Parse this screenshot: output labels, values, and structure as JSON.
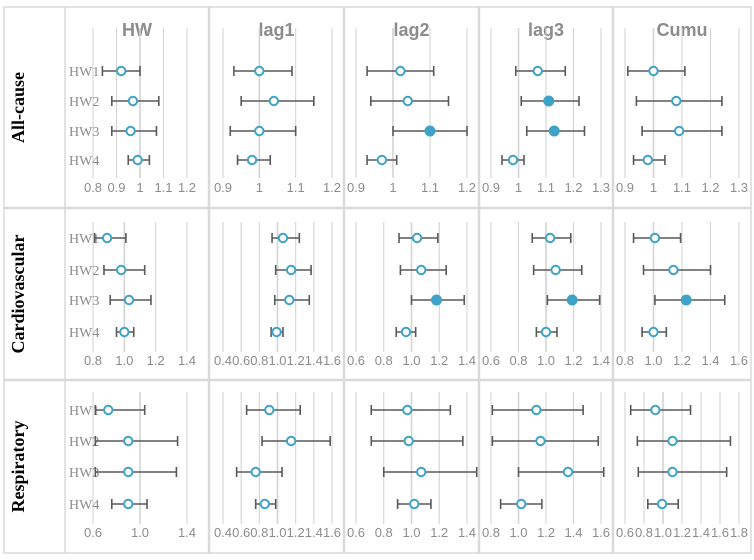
{
  "chart_data": {
    "type": "forest",
    "columns": [
      "HW",
      "lag1",
      "lag2",
      "lag3",
      "Cumu"
    ],
    "rows": [
      "All-cause",
      "Cardiovascular",
      "Respiratory"
    ],
    "heatwaves": [
      "HW1",
      "HW2",
      "HW3",
      "HW4"
    ],
    "colors": {
      "marker": "#3ea3c6",
      "whisker": "#595959",
      "grid": "#d4d4d4",
      "ref_line": "#d4d4d4",
      "panel_border": "#d9d9d9"
    },
    "marker_style": "open circle (hollow) by default; filled circle where flagged significant",
    "panels": [
      {
        "row": "All-cause",
        "col": "HW",
        "xlim": [
          0.8,
          1.2
        ],
        "ticks": [
          "0.8",
          "0.9",
          "1",
          "1.1",
          "1.2"
        ],
        "points": [
          {
            "hw": "HW1",
            "est": 0.92,
            "lo": 0.84,
            "hi": 1.0,
            "filled": false
          },
          {
            "hw": "HW2",
            "est": 0.97,
            "lo": 0.88,
            "hi": 1.08,
            "filled": false
          },
          {
            "hw": "HW3",
            "est": 0.96,
            "lo": 0.88,
            "hi": 1.07,
            "filled": false
          },
          {
            "hw": "HW4",
            "est": 0.99,
            "lo": 0.95,
            "hi": 1.04,
            "filled": false
          }
        ]
      },
      {
        "row": "All-cause",
        "col": "lag1",
        "xlim": [
          0.9,
          1.2
        ],
        "ticks": [
          "0.9",
          "1",
          "1.1",
          "1.2"
        ],
        "points": [
          {
            "hw": "HW1",
            "est": 1.0,
            "lo": 0.93,
            "hi": 1.09,
            "filled": false
          },
          {
            "hw": "HW2",
            "est": 1.04,
            "lo": 0.95,
            "hi": 1.15,
            "filled": false
          },
          {
            "hw": "HW3",
            "est": 1.0,
            "lo": 0.92,
            "hi": 1.1,
            "filled": false
          },
          {
            "hw": "HW4",
            "est": 0.98,
            "lo": 0.94,
            "hi": 1.03,
            "filled": false
          }
        ]
      },
      {
        "row": "All-cause",
        "col": "lag2",
        "xlim": [
          0.9,
          1.2
        ],
        "ticks": [
          "0.9",
          "1",
          "1.1",
          "1.2"
        ],
        "points": [
          {
            "hw": "HW1",
            "est": 1.02,
            "lo": 0.93,
            "hi": 1.11,
            "filled": false
          },
          {
            "hw": "HW2",
            "est": 1.04,
            "lo": 0.94,
            "hi": 1.15,
            "filled": false
          },
          {
            "hw": "HW3",
            "est": 1.1,
            "lo": 1.0,
            "hi": 1.2,
            "filled": true
          },
          {
            "hw": "HW4",
            "est": 0.97,
            "lo": 0.93,
            "hi": 1.01,
            "filled": false
          }
        ]
      },
      {
        "row": "All-cause",
        "col": "lag3",
        "xlim": [
          0.9,
          1.3
        ],
        "ticks": [
          "0.9",
          "1",
          "1.1",
          "1.2",
          "1.3"
        ],
        "points": [
          {
            "hw": "HW1",
            "est": 1.07,
            "lo": 0.99,
            "hi": 1.17,
            "filled": false
          },
          {
            "hw": "HW2",
            "est": 1.11,
            "lo": 1.01,
            "hi": 1.22,
            "filled": true
          },
          {
            "hw": "HW3",
            "est": 1.13,
            "lo": 1.03,
            "hi": 1.24,
            "filled": true
          },
          {
            "hw": "HW4",
            "est": 0.98,
            "lo": 0.94,
            "hi": 1.02,
            "filled": false
          }
        ]
      },
      {
        "row": "All-cause",
        "col": "Cumu",
        "xlim": [
          0.9,
          1.3
        ],
        "ticks": [
          "0.9",
          "1",
          "1.1",
          "1.2",
          "1.3"
        ],
        "points": [
          {
            "hw": "HW1",
            "est": 1.0,
            "lo": 0.91,
            "hi": 1.11,
            "filled": false
          },
          {
            "hw": "HW2",
            "est": 1.08,
            "lo": 0.94,
            "hi": 1.24,
            "filled": false
          },
          {
            "hw": "HW3",
            "est": 1.09,
            "lo": 0.96,
            "hi": 1.24,
            "filled": false
          },
          {
            "hw": "HW4",
            "est": 0.98,
            "lo": 0.93,
            "hi": 1.04,
            "filled": false
          }
        ]
      },
      {
        "row": "Cardiovascular",
        "col": "HW",
        "xlim": [
          0.8,
          1.4
        ],
        "ticks": [
          "0.8",
          "1.0",
          "1.2",
          "1.4"
        ],
        "points": [
          {
            "hw": "HW1",
            "est": 0.89,
            "lo": 0.81,
            "hi": 1.01,
            "filled": false
          },
          {
            "hw": "HW2",
            "est": 0.98,
            "lo": 0.87,
            "hi": 1.13,
            "filled": false
          },
          {
            "hw": "HW3",
            "est": 1.03,
            "lo": 0.91,
            "hi": 1.17,
            "filled": false
          },
          {
            "hw": "HW4",
            "est": 1.0,
            "lo": 0.95,
            "hi": 1.06,
            "filled": false
          }
        ]
      },
      {
        "row": "Cardiovascular",
        "col": "lag1",
        "xlim": [
          0.4,
          1.6
        ],
        "ticks": [
          "0.4",
          "0.6",
          "0.8",
          "1.0",
          "1.2",
          "1.4",
          "1.6"
        ],
        "points": [
          {
            "hw": "HW1",
            "est": 1.06,
            "lo": 0.94,
            "hi": 1.24,
            "filled": false
          },
          {
            "hw": "HW2",
            "est": 1.15,
            "lo": 0.98,
            "hi": 1.37,
            "filled": false
          },
          {
            "hw": "HW3",
            "est": 1.13,
            "lo": 0.97,
            "hi": 1.35,
            "filled": false
          },
          {
            "hw": "HW4",
            "est": 0.99,
            "lo": 0.93,
            "hi": 1.06,
            "filled": false
          }
        ]
      },
      {
        "row": "Cardiovascular",
        "col": "lag2",
        "xlim": [
          0.6,
          1.4
        ],
        "ticks": [
          "0.6",
          "0.8",
          "1.0",
          "1.2",
          "1.4"
        ],
        "points": [
          {
            "hw": "HW1",
            "est": 1.04,
            "lo": 0.91,
            "hi": 1.19,
            "filled": false
          },
          {
            "hw": "HW2",
            "est": 1.07,
            "lo": 0.92,
            "hi": 1.25,
            "filled": false
          },
          {
            "hw": "HW3",
            "est": 1.18,
            "lo": 1.0,
            "hi": 1.38,
            "filled": true
          },
          {
            "hw": "HW4",
            "est": 0.96,
            "lo": 0.89,
            "hi": 1.03,
            "filled": false
          }
        ]
      },
      {
        "row": "Cardiovascular",
        "col": "lag3",
        "xlim": [
          0.6,
          1.4
        ],
        "ticks": [
          "0.6",
          "0.8",
          "1.0",
          "1.2",
          "1.4"
        ],
        "points": [
          {
            "hw": "HW1",
            "est": 1.03,
            "lo": 0.9,
            "hi": 1.18,
            "filled": false
          },
          {
            "hw": "HW2",
            "est": 1.07,
            "lo": 0.91,
            "hi": 1.26,
            "filled": false
          },
          {
            "hw": "HW3",
            "est": 1.19,
            "lo": 1.01,
            "hi": 1.39,
            "filled": true
          },
          {
            "hw": "HW4",
            "est": 1.0,
            "lo": 0.93,
            "hi": 1.08,
            "filled": false
          }
        ]
      },
      {
        "row": "Cardiovascular",
        "col": "Cumu",
        "xlim": [
          0.8,
          1.6
        ],
        "ticks": [
          "0.8",
          "1.0",
          "1.2",
          "1.4",
          "1.6"
        ],
        "points": [
          {
            "hw": "HW1",
            "est": 1.01,
            "lo": 0.86,
            "hi": 1.19,
            "filled": false
          },
          {
            "hw": "HW2",
            "est": 1.14,
            "lo": 0.93,
            "hi": 1.4,
            "filled": false
          },
          {
            "hw": "HW3",
            "est": 1.23,
            "lo": 1.01,
            "hi": 1.5,
            "filled": true
          },
          {
            "hw": "HW4",
            "est": 1.0,
            "lo": 0.92,
            "hi": 1.09,
            "filled": false
          }
        ]
      },
      {
        "row": "Respiratory",
        "col": "HW",
        "xlim": [
          0.6,
          1.4
        ],
        "ticks": [
          "0.6",
          "1.0",
          "1.4"
        ],
        "points": [
          {
            "hw": "HW1",
            "est": 0.73,
            "lo": 0.62,
            "hi": 1.04,
            "filled": false
          },
          {
            "hw": "HW2",
            "est": 0.9,
            "lo": 0.62,
            "hi": 1.32,
            "filled": false
          },
          {
            "hw": "HW3",
            "est": 0.9,
            "lo": 0.62,
            "hi": 1.31,
            "filled": false
          },
          {
            "hw": "HW4",
            "est": 0.9,
            "lo": 0.76,
            "hi": 1.06,
            "filled": false
          }
        ]
      },
      {
        "row": "Respiratory",
        "col": "lag1",
        "xlim": [
          0.4,
          1.6
        ],
        "ticks": [
          "0.4",
          "0.6",
          "0.8",
          "1.0",
          "1.2",
          "1.4",
          "1.6"
        ],
        "points": [
          {
            "hw": "HW1",
            "est": 0.91,
            "lo": 0.66,
            "hi": 1.25,
            "filled": false
          },
          {
            "hw": "HW2",
            "est": 1.15,
            "lo": 0.83,
            "hi": 1.58,
            "filled": false
          },
          {
            "hw": "HW3",
            "est": 0.76,
            "lo": 0.55,
            "hi": 1.05,
            "filled": false
          },
          {
            "hw": "HW4",
            "est": 0.86,
            "lo": 0.76,
            "hi": 0.98,
            "filled": false
          }
        ]
      },
      {
        "row": "Respiratory",
        "col": "lag2",
        "xlim": [
          0.6,
          1.4
        ],
        "ticks": [
          "0.6",
          "0.8",
          "1.0",
          "1.2",
          "1.4"
        ],
        "points": [
          {
            "hw": "HW1",
            "est": 0.97,
            "lo": 0.71,
            "hi": 1.28,
            "filled": false
          },
          {
            "hw": "HW2",
            "est": 0.98,
            "lo": 0.71,
            "hi": 1.37,
            "filled": false
          },
          {
            "hw": "HW3",
            "est": 1.07,
            "lo": 0.8,
            "hi": 1.47,
            "filled": false
          },
          {
            "hw": "HW4",
            "est": 1.02,
            "lo": 0.9,
            "hi": 1.14,
            "filled": false
          }
        ]
      },
      {
        "row": "Respiratory",
        "col": "lag3",
        "xlim": [
          0.8,
          1.6
        ],
        "ticks": [
          "0.8",
          "1.0",
          "1.2",
          "1.4",
          "1.6"
        ],
        "points": [
          {
            "hw": "HW1",
            "est": 1.13,
            "lo": 0.81,
            "hi": 1.47,
            "filled": false
          },
          {
            "hw": "HW2",
            "est": 1.16,
            "lo": 0.81,
            "hi": 1.58,
            "filled": false
          },
          {
            "hw": "HW3",
            "est": 1.36,
            "lo": 1.0,
            "hi": 1.62,
            "filled": false
          },
          {
            "hw": "HW4",
            "est": 1.02,
            "lo": 0.87,
            "hi": 1.17,
            "filled": false
          }
        ]
      },
      {
        "row": "Respiratory",
        "col": "Cumu",
        "xlim": [
          0.6,
          1.8
        ],
        "ticks": [
          "0.6",
          "0.8",
          "1.0",
          "1.2",
          "1.4",
          "1.6",
          "1.8"
        ],
        "points": [
          {
            "hw": "HW1",
            "est": 0.92,
            "lo": 0.66,
            "hi": 1.29,
            "filled": false
          },
          {
            "hw": "HW2",
            "est": 1.1,
            "lo": 0.73,
            "hi": 1.71,
            "filled": false
          },
          {
            "hw": "HW3",
            "est": 1.1,
            "lo": 0.74,
            "hi": 1.67,
            "filled": false
          },
          {
            "hw": "HW4",
            "est": 0.99,
            "lo": 0.84,
            "hi": 1.16,
            "filled": false
          }
        ]
      }
    ]
  }
}
